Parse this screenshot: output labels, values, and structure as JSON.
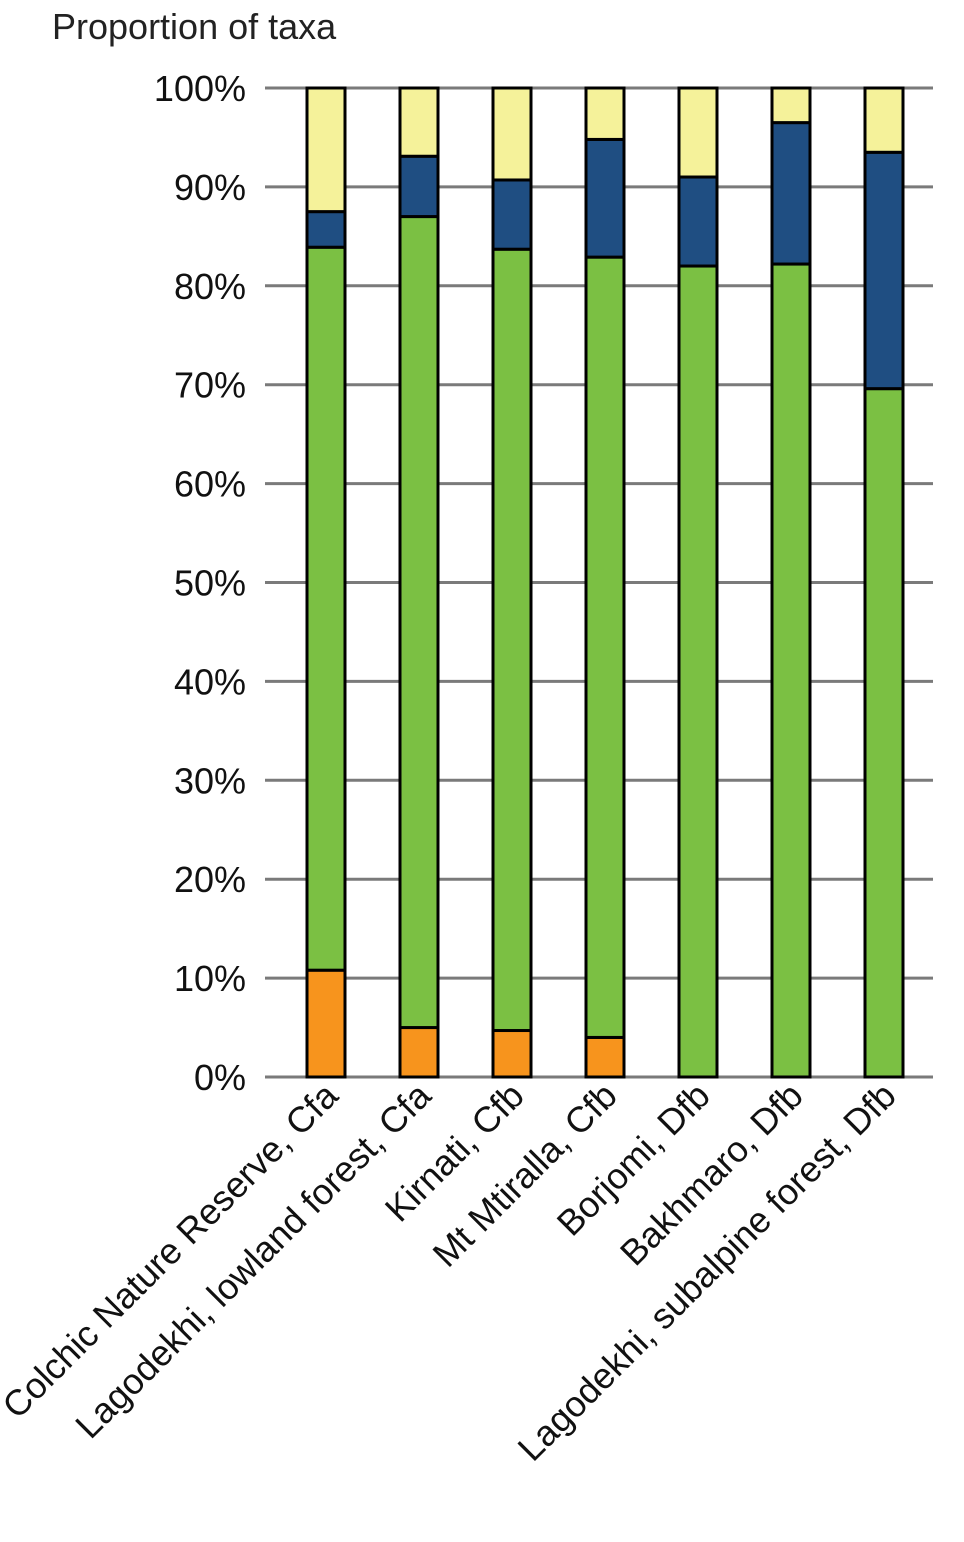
{
  "chart_data": {
    "type": "bar",
    "stacked": true,
    "orientation": "vertical",
    "title": "",
    "xlabel": "",
    "ylabel": "Proportion of taxa",
    "ylim": [
      0,
      100
    ],
    "ytick_labels": [
      "0%",
      "10%",
      "20%",
      "30%",
      "40%",
      "50%",
      "60%",
      "70%",
      "80%",
      "90%",
      "100%"
    ],
    "yticks": [
      0,
      10,
      20,
      30,
      40,
      50,
      60,
      70,
      80,
      90,
      100
    ],
    "grid": "horizontal",
    "legend": "none",
    "categories": [
      "Colchic Nature Reserve, Cfa",
      "Lagodekhi, lowland forest, Cfa",
      "Kirnati, Cfb",
      "Mt Mtiralla, Cfb",
      "Borjomi, Dfb",
      "Bakhmaro, Dfb",
      "Lagodekhi, subalpine forest, Dfb"
    ],
    "series": [
      {
        "color": "#f7941d",
        "values": [
          10.8,
          5.0,
          4.7,
          4.0,
          0,
          0,
          0
        ]
      },
      {
        "color": "#7bc043",
        "values": [
          73.1,
          82.0,
          79.0,
          78.9,
          82.0,
          82.2,
          69.6
        ]
      },
      {
        "color": "#1f4e82",
        "values": [
          3.6,
          6.1,
          7.0,
          11.9,
          9.0,
          14.3,
          23.9
        ]
      },
      {
        "color": "#f5f29a",
        "values": [
          12.5,
          6.9,
          9.3,
          5.2,
          9.0,
          3.5,
          6.5
        ]
      }
    ]
  }
}
